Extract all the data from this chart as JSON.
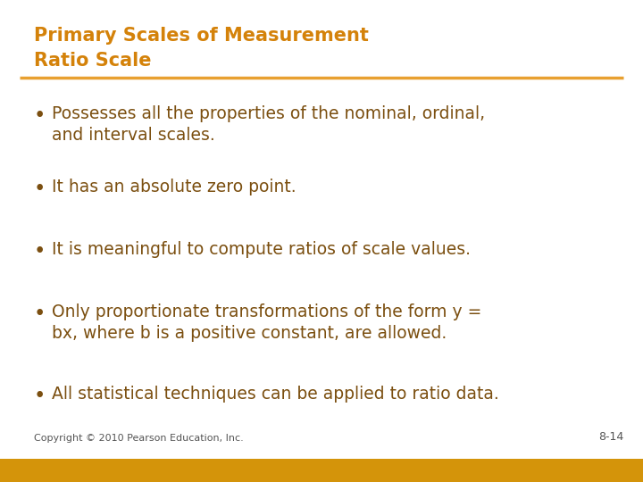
{
  "title_line1": "Primary Scales of Measurement",
  "title_line2": "Ratio Scale",
  "title_color": "#D4820A",
  "separator_color": "#E8A030",
  "bullet_color": "#7B4F10",
  "background_color": "#FFFFFF",
  "footer_bar_color": "#D4940A",
  "footer_text": "Copyright © 2010 Pearson Education, Inc.",
  "footer_page": "8-14",
  "bullet_points": [
    "Possesses all the properties of the nominal, ordinal,\nand interval scales.",
    "It has an absolute zero point.",
    "It is meaningful to compute ratios of scale values.",
    "Only proportionate transformations of the form y =\nbx, where b is a positive constant, are allowed.",
    "All statistical techniques can be applied to ratio data."
  ],
  "title_fontsize": 15,
  "bullet_fontsize": 13.5,
  "footer_fontsize": 8,
  "page_fontsize": 9
}
